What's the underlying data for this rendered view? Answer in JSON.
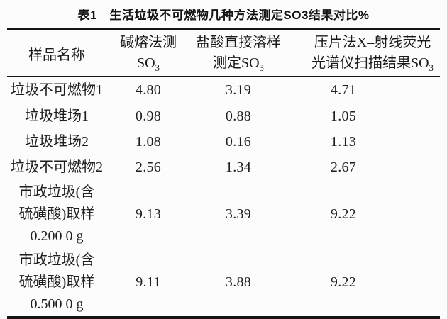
{
  "title": "表1　生活垃圾不可燃物几种方法测定SO3结果对比%",
  "table": {
    "header": {
      "col1": "样品名称",
      "col2": {
        "line1": "碱熔法测",
        "line2_base": "SO",
        "line2_sub": "3"
      },
      "col3": {
        "line1": "盐酸直接溶样",
        "line2_base": "测定SO",
        "line2_sub": "3"
      },
      "col4": {
        "line1": "压片法X–射线荧光",
        "line2_base": "光谱仪扫描结果SO",
        "line2_sub": "3"
      }
    },
    "rows": [
      {
        "name_lines": [
          "垃圾不可燃物1"
        ],
        "v1": "4.80",
        "v2": "3.19",
        "v3": "4.71"
      },
      {
        "name_lines": [
          "垃圾堆场1"
        ],
        "v1": "0.98",
        "v2": "0.88",
        "v3": "1.05"
      },
      {
        "name_lines": [
          "垃圾堆场2"
        ],
        "v1": "1.08",
        "v2": "0.16",
        "v3": "1.13"
      },
      {
        "name_lines": [
          "垃圾不可燃物2"
        ],
        "v1": "2.56",
        "v2": "1.34",
        "v3": "2.67"
      },
      {
        "name_lines": [
          "市政垃圾(含",
          "硫磺酸)取样",
          "0.200 0 g"
        ],
        "v1": "9.13",
        "v2": "3.39",
        "v3": "9.22"
      },
      {
        "name_lines": [
          "市政垃圾(含",
          "硫磺酸)取样",
          "0.500 0 g"
        ],
        "v1": "9.11",
        "v2": "3.88",
        "v3": "9.22"
      }
    ]
  },
  "chart_data": {
    "type": "table",
    "title": "表1 生活垃圾不可燃物几种方法测定SO3结果对比%",
    "columns": [
      "样品名称",
      "碱熔法测SO3",
      "盐酸直接溶样测定SO3",
      "压片法X–射线荧光光谱仪扫描结果SO3"
    ],
    "rows": [
      [
        "垃圾不可燃物1",
        4.8,
        3.19,
        4.71
      ],
      [
        "垃圾堆场1",
        0.98,
        0.88,
        1.05
      ],
      [
        "垃圾堆场2",
        1.08,
        0.16,
        1.13
      ],
      [
        "垃圾不可燃物2",
        2.56,
        1.34,
        2.67
      ],
      [
        "市政垃圾(含硫磺酸)取样 0.200 0 g",
        9.13,
        3.39,
        9.22
      ],
      [
        "市政垃圾(含硫磺酸)取样 0.500 0 g",
        9.11,
        3.88,
        9.22
      ]
    ],
    "unit": "%"
  }
}
